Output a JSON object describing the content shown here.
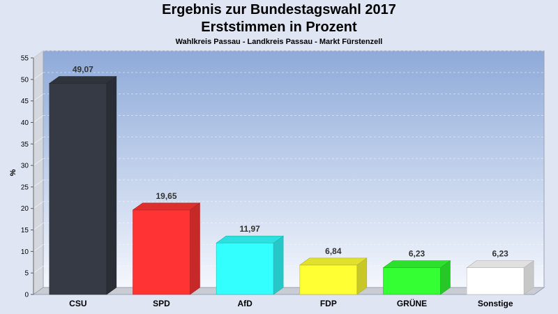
{
  "title": "Ergebnis zur Bundestagswahl 2017",
  "subtitle": "Erststimmen in Prozent",
  "subtitle2": "Wahlkreis Passau - Landkreis Passau - Markt Fürstenzell",
  "chart_data": {
    "type": "bar",
    "title": "Ergebnis zur Bundestagswahl 2017",
    "ylabel": "%",
    "xlabel": "",
    "ylim": [
      0,
      55
    ],
    "yticks": [
      0,
      5,
      10,
      15,
      20,
      25,
      30,
      35,
      40,
      45,
      50,
      55
    ],
    "categories": [
      "CSU",
      "SPD",
      "AfD",
      "FDP",
      "GRÜNE",
      "Sonstige"
    ],
    "values": [
      49.07,
      19.65,
      11.97,
      6.84,
      6.23,
      6.23
    ],
    "value_labels": [
      "49,07",
      "19,65",
      "11,97",
      "6,84",
      "6,23",
      "6,23"
    ],
    "colors": [
      "#353a44",
      "#ff3333",
      "#33ffff",
      "#ffff33",
      "#33ff33",
      "#ffffff"
    ],
    "grid": true,
    "legend": "none"
  }
}
